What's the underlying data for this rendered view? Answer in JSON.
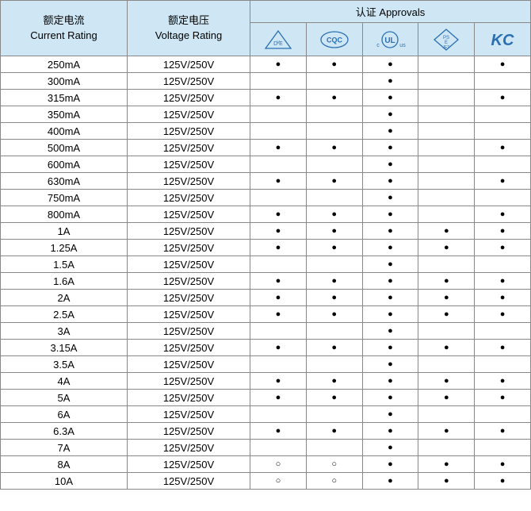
{
  "header": {
    "current_cn": "额定电流",
    "current_en": "Current Rating",
    "voltage_cn": "额定电压",
    "voltage_en": "Voltage Rating",
    "approvals_cn": "认证",
    "approvals_en": "Approvals"
  },
  "approval_icons": [
    "vde",
    "cqc",
    "ul",
    "pse",
    "kc"
  ],
  "icon_color": "#2b6fb3",
  "header_bg": "#cfe7f5",
  "border_color": "#888888",
  "rows": [
    {
      "current": "250mA",
      "voltage": "125V/250V",
      "marks": [
        "●",
        "●",
        "●",
        "",
        "●"
      ]
    },
    {
      "current": "300mA",
      "voltage": "125V/250V",
      "marks": [
        "",
        "",
        "●",
        "",
        ""
      ]
    },
    {
      "current": "315mA",
      "voltage": "125V/250V",
      "marks": [
        "●",
        "●",
        "●",
        "",
        "●"
      ]
    },
    {
      "current": "350mA",
      "voltage": "125V/250V",
      "marks": [
        "",
        "",
        "●",
        "",
        ""
      ]
    },
    {
      "current": "400mA",
      "voltage": "125V/250V",
      "marks": [
        "",
        "",
        "●",
        "",
        ""
      ]
    },
    {
      "current": "500mA",
      "voltage": "125V/250V",
      "marks": [
        "●",
        "●",
        "●",
        "",
        "●"
      ]
    },
    {
      "current": "600mA",
      "voltage": "125V/250V",
      "marks": [
        "",
        "",
        "●",
        "",
        ""
      ]
    },
    {
      "current": "630mA",
      "voltage": "125V/250V",
      "marks": [
        "●",
        "●",
        "●",
        "",
        "●"
      ]
    },
    {
      "current": "750mA",
      "voltage": "125V/250V",
      "marks": [
        "",
        "",
        "●",
        "",
        ""
      ]
    },
    {
      "current": "800mA",
      "voltage": "125V/250V",
      "marks": [
        "●",
        "●",
        "●",
        "",
        "●"
      ]
    },
    {
      "current": "1A",
      "voltage": "125V/250V",
      "marks": [
        "●",
        "●",
        "●",
        "●",
        "●"
      ]
    },
    {
      "current": "1.25A",
      "voltage": "125V/250V",
      "marks": [
        "●",
        "●",
        "●",
        "●",
        "●"
      ]
    },
    {
      "current": "1.5A",
      "voltage": "125V/250V",
      "marks": [
        "",
        "",
        "●",
        "",
        ""
      ]
    },
    {
      "current": "1.6A",
      "voltage": "125V/250V",
      "marks": [
        "●",
        "●",
        "●",
        "●",
        "●"
      ]
    },
    {
      "current": "2A",
      "voltage": "125V/250V",
      "marks": [
        "●",
        "●",
        "●",
        "●",
        "●"
      ]
    },
    {
      "current": "2.5A",
      "voltage": "125V/250V",
      "marks": [
        "●",
        "●",
        "●",
        "●",
        "●"
      ]
    },
    {
      "current": "3A",
      "voltage": "125V/250V",
      "marks": [
        "",
        "",
        "●",
        "",
        ""
      ]
    },
    {
      "current": "3.15A",
      "voltage": "125V/250V",
      "marks": [
        "●",
        "●",
        "●",
        "●",
        "●"
      ]
    },
    {
      "current": "3.5A",
      "voltage": "125V/250V",
      "marks": [
        "",
        "",
        "●",
        "",
        ""
      ]
    },
    {
      "current": "4A",
      "voltage": "125V/250V",
      "marks": [
        "●",
        "●",
        "●",
        "●",
        "●"
      ]
    },
    {
      "current": "5A",
      "voltage": "125V/250V",
      "marks": [
        "●",
        "●",
        "●",
        "●",
        "●"
      ]
    },
    {
      "current": "6A",
      "voltage": "125V/250V",
      "marks": [
        "",
        "",
        "●",
        "",
        ""
      ]
    },
    {
      "current": "6.3A",
      "voltage": "125V/250V",
      "marks": [
        "●",
        "●",
        "●",
        "●",
        "●"
      ]
    },
    {
      "current": "7A",
      "voltage": "125V/250V",
      "marks": [
        "",
        "",
        "●",
        "",
        ""
      ]
    },
    {
      "current": "8A",
      "voltage": "125V/250V",
      "marks": [
        "○",
        "○",
        "●",
        "●",
        "●"
      ]
    },
    {
      "current": "10A",
      "voltage": "125V/250V",
      "marks": [
        "○",
        "○",
        "●",
        "●",
        "●"
      ]
    }
  ]
}
